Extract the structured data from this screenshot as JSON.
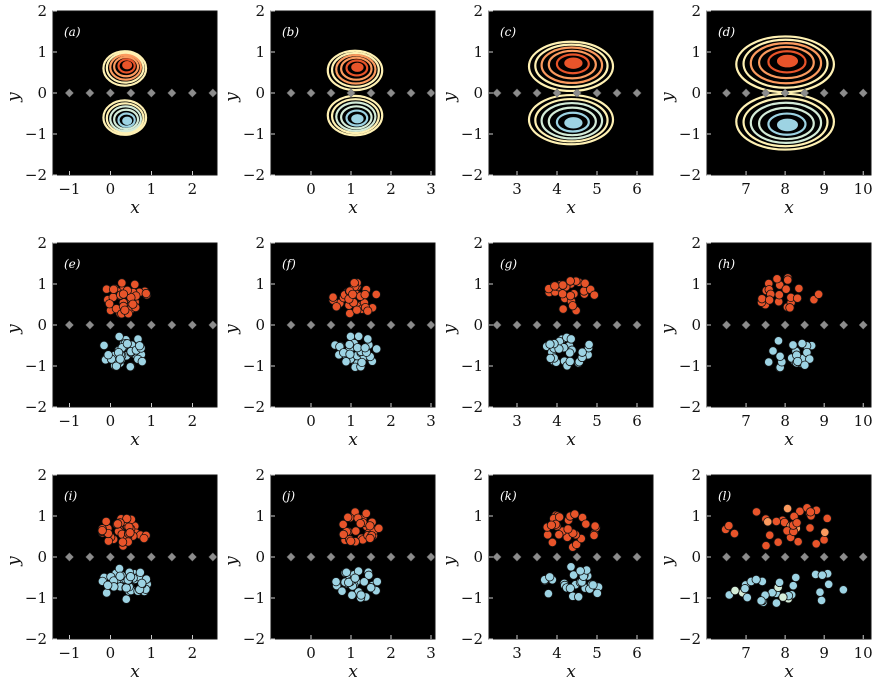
{
  "chart_data": [
    {
      "id": "a",
      "type": "contour",
      "tag": "(a)",
      "xlabel": "x",
      "ylabel": "y",
      "xlim": [
        -1.4,
        2.6
      ],
      "ylim": [
        -2,
        2
      ],
      "xticks": [
        -1,
        0,
        1,
        2
      ],
      "yticks": [
        -2,
        -1,
        0,
        1,
        2
      ],
      "markers_x": [
        -1.0,
        -0.5,
        0.0,
        0.5,
        1.0,
        1.5,
        2.0,
        2.5
      ],
      "upper": {
        "cx": 0.35,
        "cy": 0.6,
        "rx": 0.52,
        "ry": 0.42
      },
      "lower": {
        "cx": 0.35,
        "cy": -0.6,
        "rx": 0.52,
        "ry": 0.42
      }
    },
    {
      "id": "b",
      "type": "contour",
      "tag": "(b)",
      "xlabel": "x",
      "ylabel": "y",
      "xlim": [
        -1.0,
        3.1
      ],
      "ylim": [
        -2,
        2
      ],
      "xticks": [
        0,
        1,
        2,
        3
      ],
      "yticks": [
        -2,
        -1,
        0,
        1,
        2
      ],
      "markers_x": [
        -0.5,
        0.0,
        0.5,
        1.0,
        1.5,
        2.0,
        2.5,
        3.0
      ],
      "upper": {
        "cx": 1.1,
        "cy": 0.55,
        "rx": 0.68,
        "ry": 0.48
      },
      "lower": {
        "cx": 1.1,
        "cy": -0.55,
        "rx": 0.68,
        "ry": 0.48
      }
    },
    {
      "id": "c",
      "type": "contour",
      "tag": "(c)",
      "xlabel": "x",
      "ylabel": "y",
      "xlim": [
        2.3,
        6.4
      ],
      "ylim": [
        -2,
        2
      ],
      "xticks": [
        3,
        4,
        5,
        6
      ],
      "yticks": [
        -2,
        -1,
        0,
        1,
        2
      ],
      "markers_x": [
        2.5,
        3.0,
        3.5,
        4.0,
        4.5,
        5.0,
        5.5,
        6.0
      ],
      "upper": {
        "cx": 4.35,
        "cy": 0.65,
        "rx": 1.05,
        "ry": 0.6
      },
      "lower": {
        "cx": 4.35,
        "cy": -0.65,
        "rx": 1.05,
        "ry": 0.6
      }
    },
    {
      "id": "d",
      "type": "contour",
      "tag": "(d)",
      "xlabel": "x",
      "ylabel": "y",
      "xlim": [
        6.0,
        10.2
      ],
      "ylim": [
        -2,
        2
      ],
      "xticks": [
        7,
        8,
        9,
        10
      ],
      "yticks": [
        -2,
        -1,
        0,
        1,
        2
      ],
      "markers_x": [
        6.5,
        7.0,
        7.5,
        8.0,
        8.5,
        9.0,
        9.5,
        10.0
      ],
      "upper": {
        "cx": 8.0,
        "cy": 0.7,
        "rx": 1.25,
        "ry": 0.68
      },
      "lower": {
        "cx": 8.0,
        "cy": -0.7,
        "rx": 1.25,
        "ry": 0.68
      }
    },
    {
      "id": "e",
      "type": "scatter",
      "tag": "(e)",
      "xlabel": "x",
      "ylabel": "y",
      "xlim": [
        -1.4,
        2.6
      ],
      "ylim": [
        -2,
        2
      ],
      "xticks": [
        -1,
        0,
        1,
        2
      ],
      "yticks": [
        -2,
        -1,
        0,
        1,
        2
      ],
      "markers_x": [
        -1.0,
        -0.5,
        0.0,
        0.5,
        1.0,
        1.5,
        2.0,
        2.5
      ],
      "upper": {
        "cx": 0.35,
        "cy": 0.65,
        "rx": 0.55,
        "ry": 0.38
      },
      "lower": {
        "cx": 0.35,
        "cy": -0.65,
        "rx": 0.55,
        "ry": 0.38
      },
      "n": 85,
      "spread": "ring",
      "seed": 11
    },
    {
      "id": "f",
      "type": "scatter",
      "tag": "(f)",
      "xlabel": "x",
      "ylabel": "y",
      "xlim": [
        -1.0,
        3.1
      ],
      "ylim": [
        -2,
        2
      ],
      "xticks": [
        0,
        1,
        2,
        3
      ],
      "yticks": [
        -2,
        -1,
        0,
        1,
        2
      ],
      "markers_x": [
        -0.5,
        0.0,
        0.5,
        1.0,
        1.5,
        2.0,
        2.5,
        3.0
      ],
      "upper": {
        "cx": 1.1,
        "cy": 0.65,
        "rx": 0.55,
        "ry": 0.38
      },
      "lower": {
        "cx": 1.1,
        "cy": -0.65,
        "rx": 0.55,
        "ry": 0.38
      },
      "n": 75,
      "spread": "ring",
      "seed": 23
    },
    {
      "id": "g",
      "type": "scatter",
      "tag": "(g)",
      "xlabel": "x",
      "ylabel": "y",
      "xlim": [
        2.3,
        6.4
      ],
      "ylim": [
        -2,
        2
      ],
      "xticks": [
        3,
        4,
        5,
        6
      ],
      "yticks": [
        -2,
        -1,
        0,
        1,
        2
      ],
      "markers_x": [
        2.5,
        3.0,
        3.5,
        4.0,
        4.5,
        5.0,
        5.5,
        6.0
      ],
      "upper": {
        "cx": 4.35,
        "cy": 0.7,
        "rx": 0.65,
        "ry": 0.38
      },
      "lower": {
        "cx": 4.35,
        "cy": -0.65,
        "rx": 0.65,
        "ry": 0.38
      },
      "n": 55,
      "spread": "cloud",
      "seed": 37
    },
    {
      "id": "h",
      "type": "scatter",
      "tag": "(h)",
      "xlabel": "x",
      "ylabel": "y",
      "xlim": [
        6.0,
        10.2
      ],
      "ylim": [
        -2,
        2
      ],
      "xticks": [
        7,
        8,
        9,
        10
      ],
      "yticks": [
        -2,
        -1,
        0,
        1,
        2
      ],
      "markers_x": [
        6.5,
        7.0,
        7.5,
        8.0,
        8.5,
        9.0,
        9.5,
        10.0
      ],
      "upper": {
        "cx": 8.1,
        "cy": 0.75,
        "rx": 0.85,
        "ry": 0.42
      },
      "lower": {
        "cx": 8.1,
        "cy": -0.7,
        "rx": 0.85,
        "ry": 0.42
      },
      "n": 45,
      "spread": "cloud",
      "seed": 51
    },
    {
      "id": "i",
      "type": "scatter",
      "tag": "(i)",
      "xlabel": "x",
      "ylabel": "y",
      "xlim": [
        -1.4,
        2.6
      ],
      "ylim": [
        -2,
        2
      ],
      "xticks": [
        -1,
        0,
        1,
        2
      ],
      "yticks": [
        -2,
        -1,
        0,
        1,
        2
      ],
      "markers_x": [
        -1.0,
        -0.5,
        0.0,
        0.5,
        1.0,
        1.5,
        2.0,
        2.5
      ],
      "upper": {
        "cx": 0.35,
        "cy": 0.65,
        "rx": 0.55,
        "ry": 0.38
      },
      "lower": {
        "cx": 0.35,
        "cy": -0.65,
        "rx": 0.55,
        "ry": 0.38
      },
      "n": 85,
      "spread": "ring",
      "seed": 61
    },
    {
      "id": "j",
      "type": "scatter",
      "tag": "(j)",
      "xlabel": "x",
      "ylabel": "y",
      "xlim": [
        -1.0,
        3.1
      ],
      "ylim": [
        -2,
        2
      ],
      "xticks": [
        0,
        1,
        2,
        3
      ],
      "yticks": [
        -2,
        -1,
        0,
        1,
        2
      ],
      "markers_x": [
        -0.5,
        0.0,
        0.5,
        1.0,
        1.5,
        2.0,
        2.5,
        3.0
      ],
      "upper": {
        "cx": 1.15,
        "cy": 0.7,
        "rx": 0.55,
        "ry": 0.42
      },
      "lower": {
        "cx": 1.15,
        "cy": -0.7,
        "rx": 0.55,
        "ry": 0.42
      },
      "n": 60,
      "spread": "cloud",
      "seed": 73
    },
    {
      "id": "k",
      "type": "scatter",
      "tag": "(k)",
      "xlabel": "x",
      "ylabel": "y",
      "xlim": [
        2.3,
        6.4
      ],
      "ylim": [
        -2,
        2
      ],
      "xticks": [
        3,
        4,
        5,
        6
      ],
      "yticks": [
        -2,
        -1,
        0,
        1,
        2
      ],
      "markers_x": [
        2.5,
        3.0,
        3.5,
        4.0,
        4.5,
        5.0,
        5.5,
        6.0
      ],
      "upper": {
        "cx": 4.35,
        "cy": 0.65,
        "rx": 0.8,
        "ry": 0.42
      },
      "lower": {
        "cx": 4.35,
        "cy": -0.65,
        "rx": 0.8,
        "ry": 0.42
      },
      "n": 60,
      "spread": "cloud",
      "seed": 89
    },
    {
      "id": "l",
      "type": "scatter",
      "tag": "(l)",
      "xlabel": "x",
      "ylabel": "y",
      "xlim": [
        6.0,
        10.2
      ],
      "ylim": [
        -2,
        2
      ],
      "xticks": [
        7,
        8,
        9,
        10
      ],
      "yticks": [
        -2,
        -1,
        0,
        1,
        2
      ],
      "markers_x": [
        6.5,
        7.0,
        7.5,
        8.0,
        8.5,
        9.0,
        9.5,
        10.0
      ],
      "upper": {
        "cx": 8.0,
        "cy": 0.75,
        "rx": 1.5,
        "ry": 0.5
      },
      "lower": {
        "cx": 8.0,
        "cy": -0.75,
        "rx": 1.5,
        "ry": 0.5
      },
      "n": 65,
      "spread": "wide",
      "seed": 97
    }
  ],
  "colors": {
    "background": "#000000",
    "upper_inner": "#e8542a",
    "upper_mid": "#fb9a5e",
    "upper_outer": "#fff1b3",
    "lower_inner": "#9dd3e3",
    "lower_mid": "#d4ecd8",
    "lower_outer": "#fff1b3",
    "marker": "#8c8c8c"
  }
}
